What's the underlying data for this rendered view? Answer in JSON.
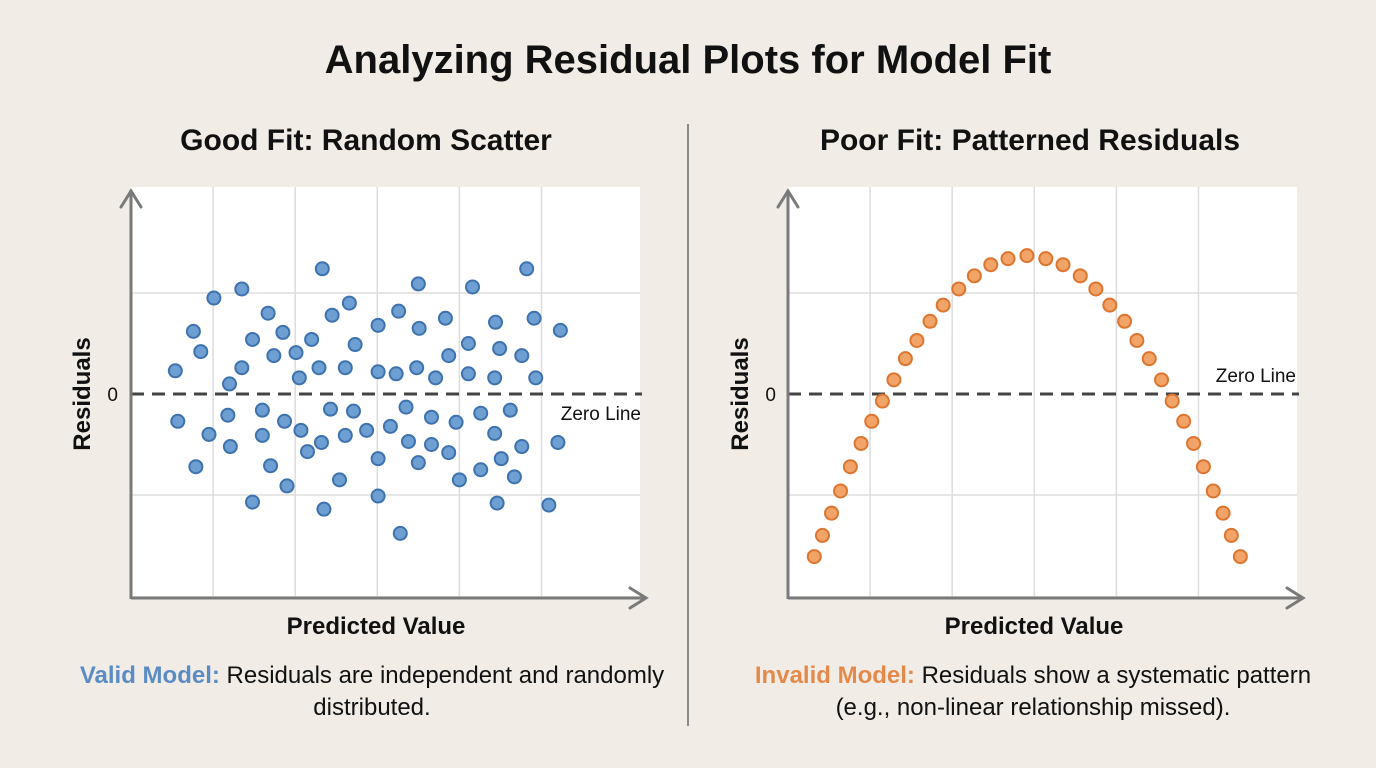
{
  "title": "Analyzing Residual Plots for Model Fit",
  "colors": {
    "background": "#f1ede6",
    "blue_fill": "#6e9fd3",
    "blue_stroke": "#3e72ad",
    "orange_fill": "#f2a468",
    "orange_stroke": "#db7530",
    "valid_label": "#5b8cc4",
    "invalid_label": "#e38a4b",
    "zero_line": "#444444",
    "axis": "#7a7a7a",
    "grid": "#dddddd"
  },
  "left": {
    "subtitle": "Good Fit: Random Scatter",
    "caption_label": "Valid Model:",
    "caption_text": " Residuals are independent and randomly distributed."
  },
  "right": {
    "subtitle": "Poor Fit: Patterned Residuals",
    "caption_label": "Invalid Model:",
    "caption_text": " Residuals show a systematic pattern (e.g., non-linear relationship missed)."
  },
  "chart_data": [
    {
      "type": "scatter",
      "title": "Good Fit: Random Scatter",
      "xlabel": "Predicted Value",
      "ylabel": "Residuals",
      "yticks": [
        "0"
      ],
      "annotation": "Zero Line",
      "reference_line": 0,
      "xlim": [
        0,
        6.2
      ],
      "ylim": [
        -2,
        2
      ],
      "grid": true,
      "color": "#6e9fd3",
      "points": [
        [
          2.33,
          1.24
        ],
        [
          1.35,
          1.04
        ],
        [
          1.01,
          0.95
        ],
        [
          2.66,
          0.9
        ],
        [
          1.67,
          0.8
        ],
        [
          2.45,
          0.78
        ],
        [
          0.76,
          0.62
        ],
        [
          1.85,
          0.61
        ],
        [
          1.48,
          0.54
        ],
        [
          2.2,
          0.54
        ],
        [
          2.73,
          0.49
        ],
        [
          0.85,
          0.42
        ],
        [
          1.74,
          0.38
        ],
        [
          2.01,
          0.41
        ],
        [
          0.54,
          0.23
        ],
        [
          1.35,
          0.26
        ],
        [
          2.29,
          0.26
        ],
        [
          2.61,
          0.26
        ],
        [
          2.05,
          0.16
        ],
        [
          1.2,
          0.1
        ],
        [
          0.57,
          -0.27
        ],
        [
          1.18,
          -0.21
        ],
        [
          1.6,
          -0.16
        ],
        [
          2.43,
          -0.15
        ],
        [
          2.71,
          -0.17
        ],
        [
          1.87,
          -0.27
        ],
        [
          0.95,
          -0.4
        ],
        [
          1.6,
          -0.41
        ],
        [
          2.07,
          -0.36
        ],
        [
          2.87,
          -0.36
        ],
        [
          2.61,
          -0.41
        ],
        [
          1.21,
          -0.52
        ],
        [
          2.32,
          -0.48
        ],
        [
          2.15,
          -0.57
        ],
        [
          0.79,
          -0.72
        ],
        [
          1.7,
          -0.71
        ],
        [
          2.54,
          -0.85
        ],
        [
          1.9,
          -0.91
        ],
        [
          1.48,
          -1.07
        ],
        [
          2.35,
          -1.14
        ],
        [
          4.82,
          1.24
        ],
        [
          3.5,
          1.09
        ],
        [
          4.16,
          1.06
        ],
        [
          3.26,
          0.82
        ],
        [
          3.01,
          0.68
        ],
        [
          3.51,
          0.65
        ],
        [
          3.83,
          0.75
        ],
        [
          4.44,
          0.71
        ],
        [
          4.91,
          0.75
        ],
        [
          5.23,
          0.63
        ],
        [
          4.11,
          0.5
        ],
        [
          4.49,
          0.45
        ],
        [
          3.87,
          0.38
        ],
        [
          4.76,
          0.38
        ],
        [
          3.01,
          0.22
        ],
        [
          3.23,
          0.2
        ],
        [
          3.48,
          0.26
        ],
        [
          3.71,
          0.16
        ],
        [
          4.11,
          0.2
        ],
        [
          4.43,
          0.16
        ],
        [
          4.93,
          0.16
        ],
        [
          3.35,
          -0.13
        ],
        [
          3.66,
          -0.23
        ],
        [
          3.96,
          -0.28
        ],
        [
          4.26,
          -0.19
        ],
        [
          4.62,
          -0.16
        ],
        [
          3.16,
          -0.32
        ],
        [
          4.43,
          -0.39
        ],
        [
          3.38,
          -0.47
        ],
        [
          3.66,
          -0.5
        ],
        [
          3.87,
          -0.58
        ],
        [
          5.2,
          -0.48
        ],
        [
          4.76,
          -0.52
        ],
        [
          3.01,
          -0.64
        ],
        [
          3.5,
          -0.68
        ],
        [
          4.51,
          -0.64
        ],
        [
          4.26,
          -0.75
        ],
        [
          4.0,
          -0.85
        ],
        [
          4.67,
          -0.82
        ],
        [
          3.01,
          -1.01
        ],
        [
          4.46,
          -1.08
        ],
        [
          5.09,
          -1.1
        ],
        [
          3.28,
          -1.38
        ]
      ]
    },
    {
      "type": "scatter",
      "title": "Poor Fit: Patterned Residuals",
      "xlabel": "Predicted Value",
      "ylabel": "Residuals",
      "yticks": [
        "0"
      ],
      "annotation": "Zero Line",
      "reference_line": 0,
      "xlim": [
        0,
        6.2
      ],
      "ylim": [
        -2,
        2
      ],
      "grid": true,
      "color": "#f2a468",
      "points": [
        [
          0.32,
          -1.61
        ],
        [
          0.42,
          -1.4
        ],
        [
          0.53,
          -1.18
        ],
        [
          0.64,
          -0.96
        ],
        [
          0.76,
          -0.72
        ],
        [
          0.89,
          -0.49
        ],
        [
          1.02,
          -0.27
        ],
        [
          1.15,
          -0.07
        ],
        [
          1.29,
          0.14
        ],
        [
          1.43,
          0.35
        ],
        [
          1.57,
          0.53
        ],
        [
          1.73,
          0.72
        ],
        [
          1.89,
          0.88
        ],
        [
          2.08,
          1.04
        ],
        [
          2.27,
          1.17
        ],
        [
          2.47,
          1.28
        ],
        [
          2.68,
          1.34
        ],
        [
          2.91,
          1.37
        ],
        [
          3.14,
          1.34
        ],
        [
          3.35,
          1.28
        ],
        [
          3.56,
          1.17
        ],
        [
          3.75,
          1.04
        ],
        [
          3.92,
          0.88
        ],
        [
          4.1,
          0.72
        ],
        [
          4.25,
          0.53
        ],
        [
          4.4,
          0.35
        ],
        [
          4.55,
          0.14
        ],
        [
          4.68,
          -0.07
        ],
        [
          4.82,
          -0.27
        ],
        [
          4.94,
          -0.49
        ],
        [
          5.06,
          -0.72
        ],
        [
          5.18,
          -0.96
        ],
        [
          5.3,
          -1.18
        ],
        [
          5.4,
          -1.4
        ],
        [
          5.51,
          -1.61
        ]
      ]
    }
  ]
}
